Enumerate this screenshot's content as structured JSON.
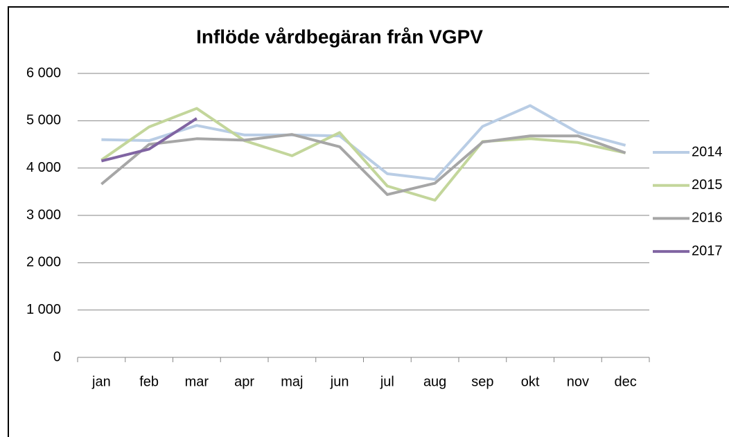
{
  "chart_data": {
    "type": "line",
    "title": "Inflöde vårdbegäran från VGPV",
    "categories": [
      "jan",
      "feb",
      "mar",
      "apr",
      "maj",
      "jun",
      "jul",
      "aug",
      "sep",
      "okt",
      "nov",
      "dec"
    ],
    "series": [
      {
        "name": "2014",
        "color": "#b9cde5",
        "values": [
          4600,
          4580,
          4900,
          4700,
          4700,
          4680,
          3880,
          3760,
          4880,
          5320,
          4750,
          4480
        ]
      },
      {
        "name": "2015",
        "color": "#c3d69b",
        "values": [
          4170,
          4870,
          5260,
          4580,
          4260,
          4750,
          3620,
          3320,
          4560,
          4620,
          4540,
          4320
        ]
      },
      {
        "name": "2016",
        "color": "#a6a6a6",
        "values": [
          3660,
          4500,
          4620,
          4590,
          4710,
          4450,
          3440,
          3680,
          4550,
          4680,
          4680,
          4320
        ]
      },
      {
        "name": "2017",
        "color": "#8064a2",
        "values": [
          4150,
          4400,
          5050,
          null,
          null,
          null,
          null,
          null,
          null,
          null,
          null,
          null
        ]
      }
    ],
    "ylim": [
      0,
      6000
    ],
    "yticks": [
      0,
      {
        "value": 1000,
        "label": "1 000"
      },
      {
        "value": 2000,
        "label": "2 000"
      },
      {
        "value": 3000,
        "label": "3 000"
      },
      {
        "value": 4000,
        "label": "4 000"
      },
      {
        "value": 5000,
        "label": "5 000"
      },
      {
        "value": 6000,
        "label": "6 000"
      }
    ],
    "grid": true,
    "legend": "right"
  }
}
